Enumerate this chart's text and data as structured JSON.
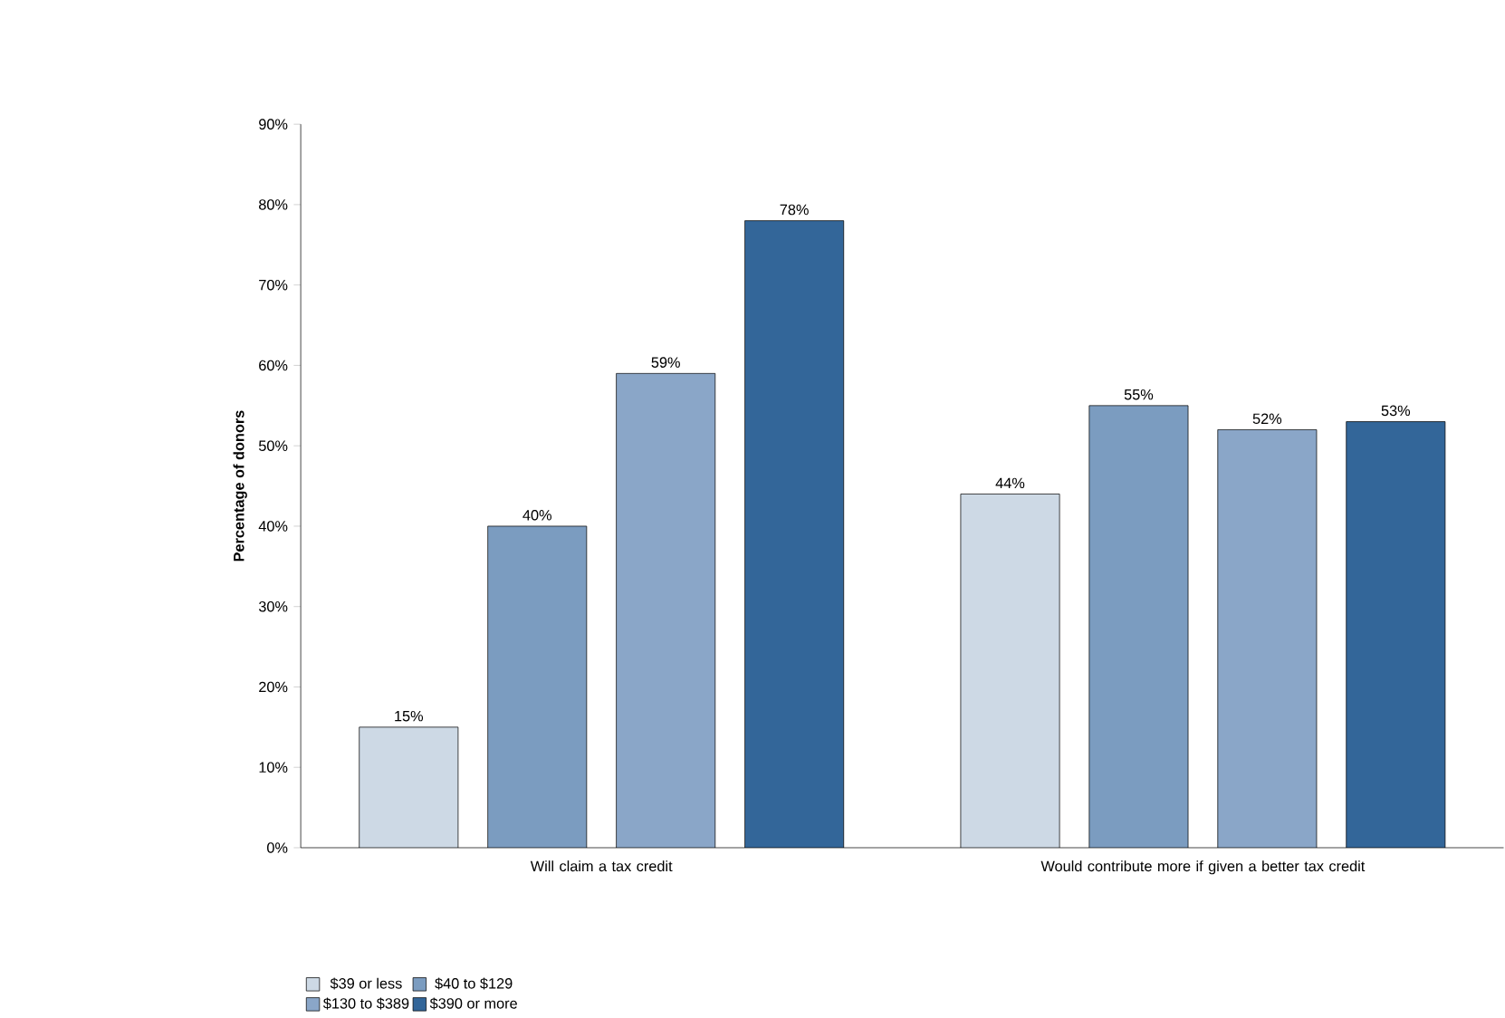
{
  "chart_data": {
    "type": "bar",
    "ylabel": "Percentage of donors",
    "categories": [
      "Will claim a tax credit",
      "Would contribute more if given a better tax credit"
    ],
    "series": [
      {
        "name": "$39 or less",
        "color": "#cdd9e5",
        "values": [
          15,
          44
        ],
        "value_labels": [
          "15%",
          "44%"
        ]
      },
      {
        "name": "$40 to $129",
        "color": "#7b9cc0",
        "values": [
          40,
          55
        ],
        "value_labels": [
          "40%",
          "55%"
        ]
      },
      {
        "name": "$130 to $389",
        "color": "#8aa6c8",
        "values": [
          59,
          52
        ],
        "value_labels": [
          "59%",
          "52%"
        ]
      },
      {
        "name": "$390 or more",
        "color": "#336699",
        "values": [
          78,
          53
        ],
        "value_labels": [
          "78%",
          "53%"
        ]
      }
    ],
    "ylim": [
      0,
      90
    ],
    "yticks": [
      {
        "value": 0,
        "label": "0%"
      },
      {
        "value": 10,
        "label": "10%"
      },
      {
        "value": 20,
        "label": "20%"
      },
      {
        "value": 30,
        "label": "30%"
      },
      {
        "value": 40,
        "label": "40%"
      },
      {
        "value": 50,
        "label": "50%"
      },
      {
        "value": 60,
        "label": "60%"
      },
      {
        "value": 70,
        "label": "70%"
      },
      {
        "value": 80,
        "label": "80%"
      },
      {
        "value": 90,
        "label": "90%"
      }
    ],
    "grid": false,
    "legend": "bottom left"
  }
}
